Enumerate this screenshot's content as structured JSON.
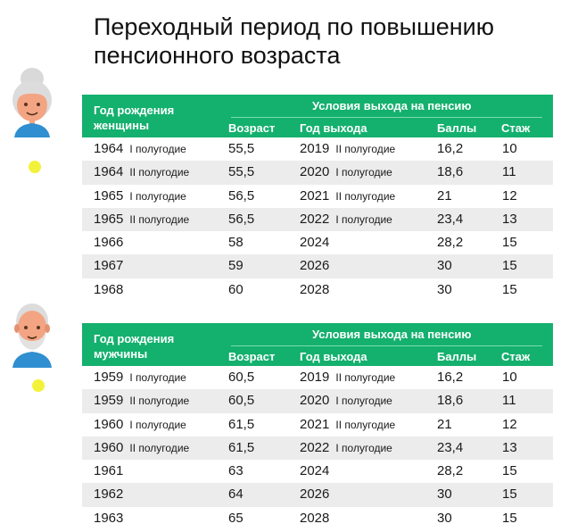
{
  "title": {
    "line1": "Переходный период по повышению",
    "line2": "пенсионного возраста"
  },
  "colors": {
    "header_bg": "#14b06e",
    "alt_row_bg": "#ececec",
    "dot": "#f3f23a"
  },
  "women": {
    "avatar_icon": "elderly-woman-icon",
    "header": {
      "birth_line1": "Год рождения",
      "birth_line2": "женщины",
      "group": "Условия выхода на пенсию",
      "age": "Возраст",
      "exit_year": "Год выхода",
      "points": "Баллы",
      "experience": "Стаж"
    },
    "rows": [
      {
        "birth_year": "1964",
        "birth_half": "I полугодие",
        "age": "55,5",
        "exit_year": "2019",
        "exit_half": "II полугодие",
        "points": "16,2",
        "experience": "10"
      },
      {
        "birth_year": "1964",
        "birth_half": "II полугодие",
        "age": "55,5",
        "exit_year": "2020",
        "exit_half": "I полугодие",
        "points": "18,6",
        "experience": "11"
      },
      {
        "birth_year": "1965",
        "birth_half": "I полугодие",
        "age": "56,5",
        "exit_year": "2021",
        "exit_half": "II полугодие",
        "points": "21",
        "experience": "12"
      },
      {
        "birth_year": "1965",
        "birth_half": "II полугодие",
        "age": "56,5",
        "exit_year": "2022",
        "exit_half": "I полугодие",
        "points": "23,4",
        "experience": "13"
      },
      {
        "birth_year": "1966",
        "birth_half": "",
        "age": "58",
        "exit_year": "2024",
        "exit_half": "",
        "points": "28,2",
        "experience": "15"
      },
      {
        "birth_year": "1967",
        "birth_half": "",
        "age": "59",
        "exit_year": "2026",
        "exit_half": "",
        "points": "30",
        "experience": "15"
      },
      {
        "birth_year": "1968",
        "birth_half": "",
        "age": "60",
        "exit_year": "2028",
        "exit_half": "",
        "points": "30",
        "experience": "15"
      }
    ]
  },
  "men": {
    "avatar_icon": "elderly-man-icon",
    "header": {
      "birth_line1": "Год рождения",
      "birth_line2": "мужчины",
      "group": "Условия выхода на пенсию",
      "age": "Возраст",
      "exit_year": "Год выхода",
      "points": "Баллы",
      "experience": "Стаж"
    },
    "rows": [
      {
        "birth_year": "1959",
        "birth_half": "I полугодие",
        "age": "60,5",
        "exit_year": "2019",
        "exit_half": "II полугодие",
        "points": "16,2",
        "experience": "10"
      },
      {
        "birth_year": "1959",
        "birth_half": "II полугодие",
        "age": "60,5",
        "exit_year": "2020",
        "exit_half": "I полугодие",
        "points": "18,6",
        "experience": "11"
      },
      {
        "birth_year": "1960",
        "birth_half": "I полугодие",
        "age": "61,5",
        "exit_year": "2021",
        "exit_half": "II полугодие",
        "points": "21",
        "experience": "12"
      },
      {
        "birth_year": "1960",
        "birth_half": "II полугодие",
        "age": "61,5",
        "exit_year": "2022",
        "exit_half": "I полугодие",
        "points": "23,4",
        "experience": "13"
      },
      {
        "birth_year": "1961",
        "birth_half": "",
        "age": "63",
        "exit_year": "2024",
        "exit_half": "",
        "points": "28,2",
        "experience": "15"
      },
      {
        "birth_year": "1962",
        "birth_half": "",
        "age": "64",
        "exit_year": "2026",
        "exit_half": "",
        "points": "30",
        "experience": "15"
      },
      {
        "birth_year": "1963",
        "birth_half": "",
        "age": "65",
        "exit_year": "2028",
        "exit_half": "",
        "points": "30",
        "experience": "15"
      }
    ]
  }
}
